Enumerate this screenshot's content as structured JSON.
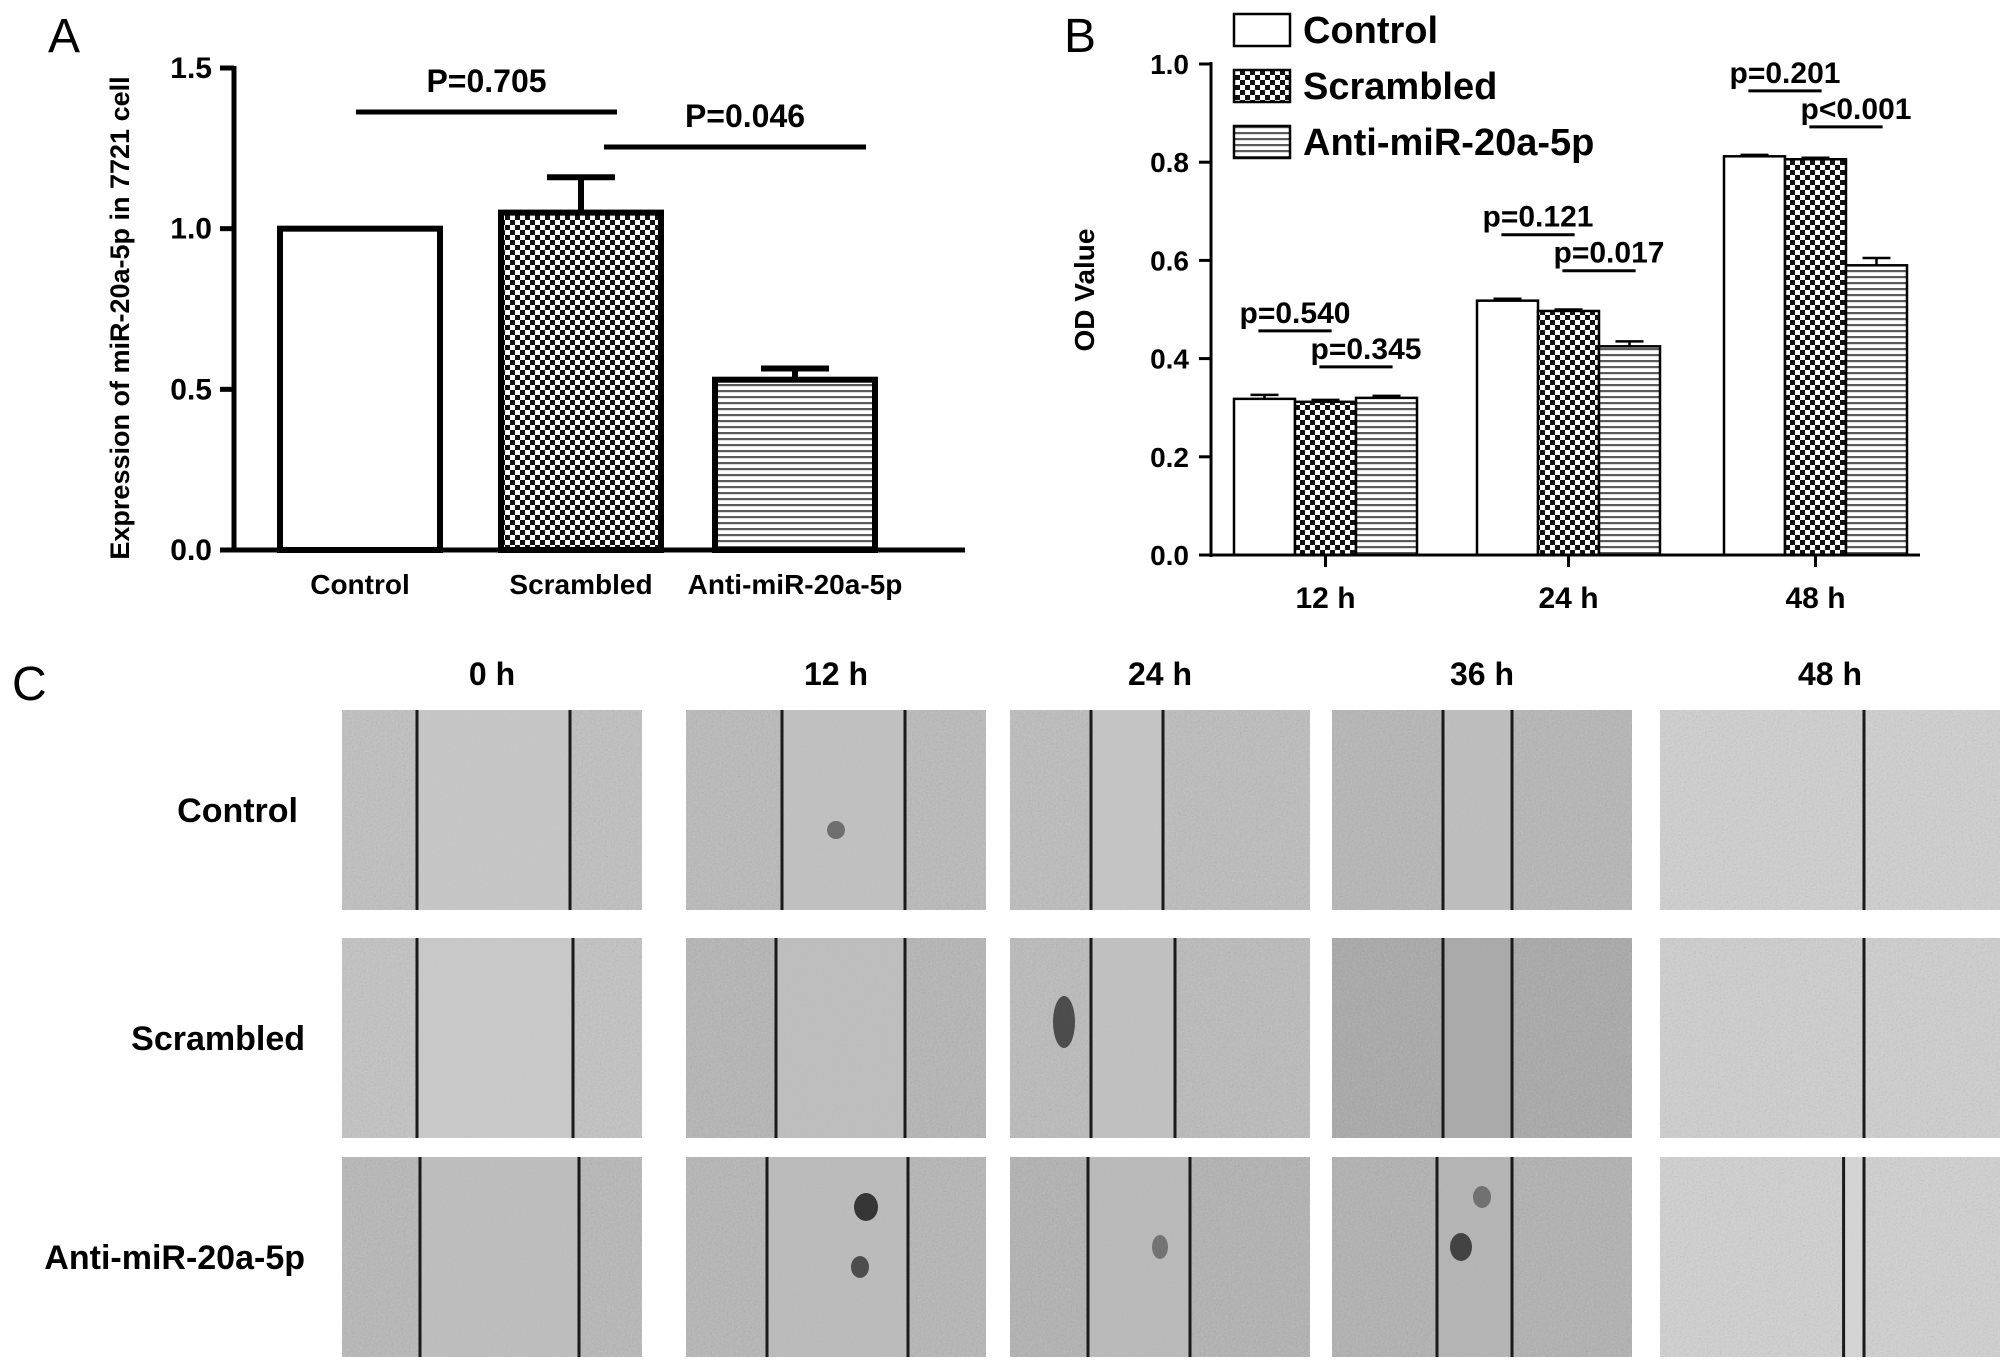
{
  "panel_labels": {
    "a": "A",
    "b": "B",
    "c": "C"
  },
  "chart_data": [
    {
      "type": "bar",
      "panel": "A",
      "title": "",
      "xlabel": "",
      "ylabel": "Expression of miR-20a-5p in 7721 cell",
      "ylim": [
        0,
        1.5
      ],
      "yticks": [
        "0.0",
        "0.5",
        "1.0",
        "1.5"
      ],
      "categories": [
        "Control",
        "Scrambled",
        "Anti-miR-20a-5p"
      ],
      "values": [
        1.0,
        1.05,
        0.53
      ],
      "errors": [
        0,
        0.11,
        0.035
      ],
      "patterns": [
        "white",
        "checker",
        "hstripe"
      ],
      "annotations": [
        {
          "text": "P=0.705",
          "from": 0,
          "to": 1
        },
        {
          "text": "P=0.046",
          "from": 1,
          "to": 2
        }
      ],
      "grid": false
    },
    {
      "type": "bar",
      "panel": "B",
      "title": "",
      "xlabel": "",
      "ylabel": "OD Value",
      "ylim": [
        0,
        1.0
      ],
      "yticks": [
        "0.0",
        "0.2",
        "0.4",
        "0.6",
        "0.8",
        "1.0"
      ],
      "categories": [
        "12 h",
        "24 h",
        "48 h"
      ],
      "series": [
        {
          "name": "Control",
          "pattern": "white",
          "values": [
            0.318,
            0.518,
            0.812
          ],
          "errors": [
            0.008,
            0.004,
            0.003
          ]
        },
        {
          "name": "Scrambled",
          "pattern": "checker",
          "values": [
            0.312,
            0.497,
            0.806
          ],
          "errors": [
            0.004,
            0.003,
            0.003
          ]
        },
        {
          "name": "Anti-miR-20a-5p",
          "pattern": "hstripe",
          "values": [
            0.32,
            0.425,
            0.59
          ],
          "errors": [
            0.004,
            0.01,
            0.015
          ]
        }
      ],
      "annotations": [
        {
          "group": 0,
          "line1": "p=0.540",
          "line2": "p=0.345"
        },
        {
          "group": 1,
          "line1": "p=0.121",
          "line2": "p=0.017"
        },
        {
          "group": 2,
          "line1": "p=0.201",
          "line2": "p<0.001"
        }
      ],
      "legend": "top-left",
      "grid": false
    }
  ],
  "panel_c": {
    "columns": [
      "0 h",
      "12 h",
      "24 h",
      "36 h",
      "48 h"
    ],
    "rows": [
      "Control",
      "Scrambled",
      "Anti-miR-20a-5p"
    ]
  }
}
